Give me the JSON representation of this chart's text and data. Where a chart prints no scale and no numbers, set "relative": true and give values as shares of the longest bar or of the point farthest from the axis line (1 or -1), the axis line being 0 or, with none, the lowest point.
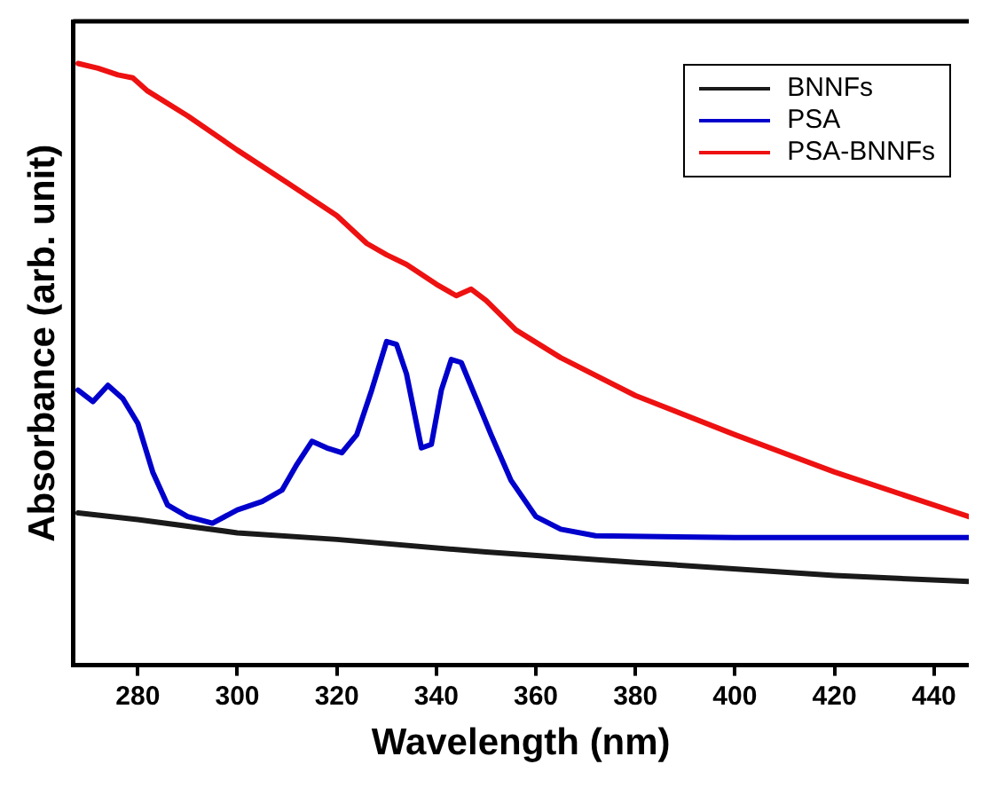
{
  "chart_data": {
    "type": "line",
    "xlabel": "Wavelength (nm)",
    "ylabel": "Absorbance (arb. unit)",
    "relative": true,
    "xlim": [
      267,
      447
    ],
    "xticks": [
      280,
      300,
      320,
      340,
      360,
      380,
      400,
      420,
      440
    ],
    "legend": "top right",
    "grid": false,
    "marker": "none",
    "line_style": "solid",
    "series": [
      {
        "name": "BNNFs",
        "color": "#1a1a1a",
        "x": [
          268,
          280,
          300,
          320,
          350,
          380,
          420,
          447
        ],
        "values": [
          0.253,
          0.242,
          0.22,
          0.209,
          0.188,
          0.171,
          0.149,
          0.139
        ]
      },
      {
        "name": "PSA",
        "color": "#0000cc",
        "x": [
          268,
          271,
          274,
          277,
          280,
          283,
          286,
          290,
          295,
          300,
          305,
          309,
          312,
          315,
          318,
          321,
          324,
          327,
          330,
          332,
          334,
          337,
          339,
          341,
          343,
          345,
          348,
          351,
          355,
          360,
          365,
          372,
          400,
          447
        ],
        "values": [
          0.457,
          0.438,
          0.465,
          0.443,
          0.402,
          0.321,
          0.266,
          0.247,
          0.236,
          0.258,
          0.272,
          0.291,
          0.334,
          0.372,
          0.361,
          0.353,
          0.383,
          0.457,
          0.538,
          0.533,
          0.484,
          0.361,
          0.367,
          0.457,
          0.508,
          0.503,
          0.443,
          0.383,
          0.307,
          0.247,
          0.226,
          0.215,
          0.212,
          0.212
        ]
      },
      {
        "name": "PSA-BNNFs",
        "color": "#ee1111",
        "x": [
          268,
          272,
          276,
          279,
          282,
          290,
          300,
          310,
          320,
          326,
          330,
          334,
          340,
          344,
          347,
          350,
          356,
          365,
          380,
          400,
          420,
          440,
          447
        ],
        "values": [
          1.0,
          0.992,
          0.981,
          0.976,
          0.954,
          0.913,
          0.856,
          0.802,
          0.747,
          0.701,
          0.682,
          0.666,
          0.633,
          0.614,
          0.625,
          0.606,
          0.557,
          0.511,
          0.448,
          0.383,
          0.321,
          0.266,
          0.247
        ]
      }
    ]
  }
}
